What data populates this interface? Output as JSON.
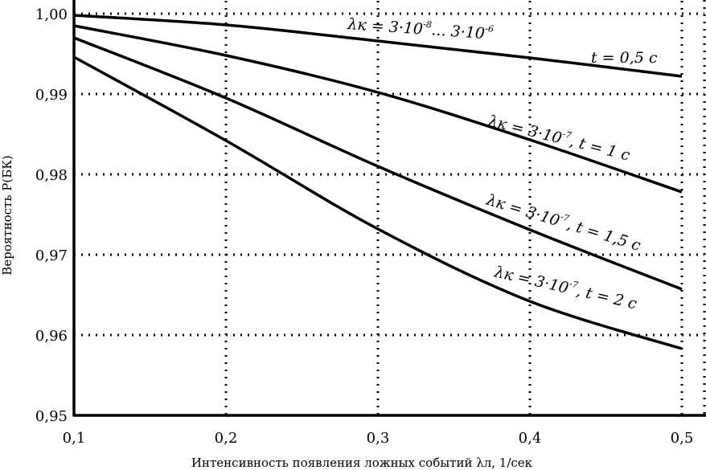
{
  "chart_data": {
    "type": "line",
    "xlabel": "Интенсивность появления ложных событий λл, 1/сек",
    "ylabel": "Вероятность P(БК)",
    "xlim": [
      0.1,
      0.5
    ],
    "ylim": [
      0.95,
      1.0
    ],
    "grid": true,
    "x_ticks": [
      "0,1",
      "0,2",
      "0,3",
      "0,4",
      "0,5"
    ],
    "y_ticks": [
      "1,00",
      "0,99",
      "0,98",
      "0,97",
      "0,96",
      "0,95"
    ],
    "series": [
      {
        "label_lead": "λк = 3·10",
        "label_exp1": "-8",
        "label_mid": "... 3·10",
        "label_exp2": "-6",
        "label_tail": "",
        "t_label": "t = 0,5 с",
        "x": [
          0.1,
          0.2,
          0.3,
          0.4,
          0.5
        ],
        "y": [
          0.9998,
          0.9986,
          0.9966,
          0.9945,
          0.9922
        ]
      },
      {
        "label_lead": "λк = 3·10",
        "label_exp1": "-7",
        "label_tail": ", t = 1 с",
        "x": [
          0.1,
          0.2,
          0.3,
          0.4,
          0.5
        ],
        "y": [
          0.9985,
          0.9948,
          0.9902,
          0.9843,
          0.9778
        ]
      },
      {
        "label_lead": "λк = 3·10",
        "label_exp1": "-7",
        "label_tail": ", t = 1,5 с",
        "x": [
          0.1,
          0.2,
          0.3,
          0.4,
          0.5
        ],
        "y": [
          0.997,
          0.9895,
          0.981,
          0.9731,
          0.9657
        ]
      },
      {
        "label_lead": "λк = 3·10",
        "label_exp1": "-7",
        "label_tail": ", t = 2 с",
        "x": [
          0.1,
          0.2,
          0.3,
          0.4,
          0.5
        ],
        "y": [
          0.9946,
          0.9842,
          0.9732,
          0.9642,
          0.9583
        ]
      }
    ]
  }
}
